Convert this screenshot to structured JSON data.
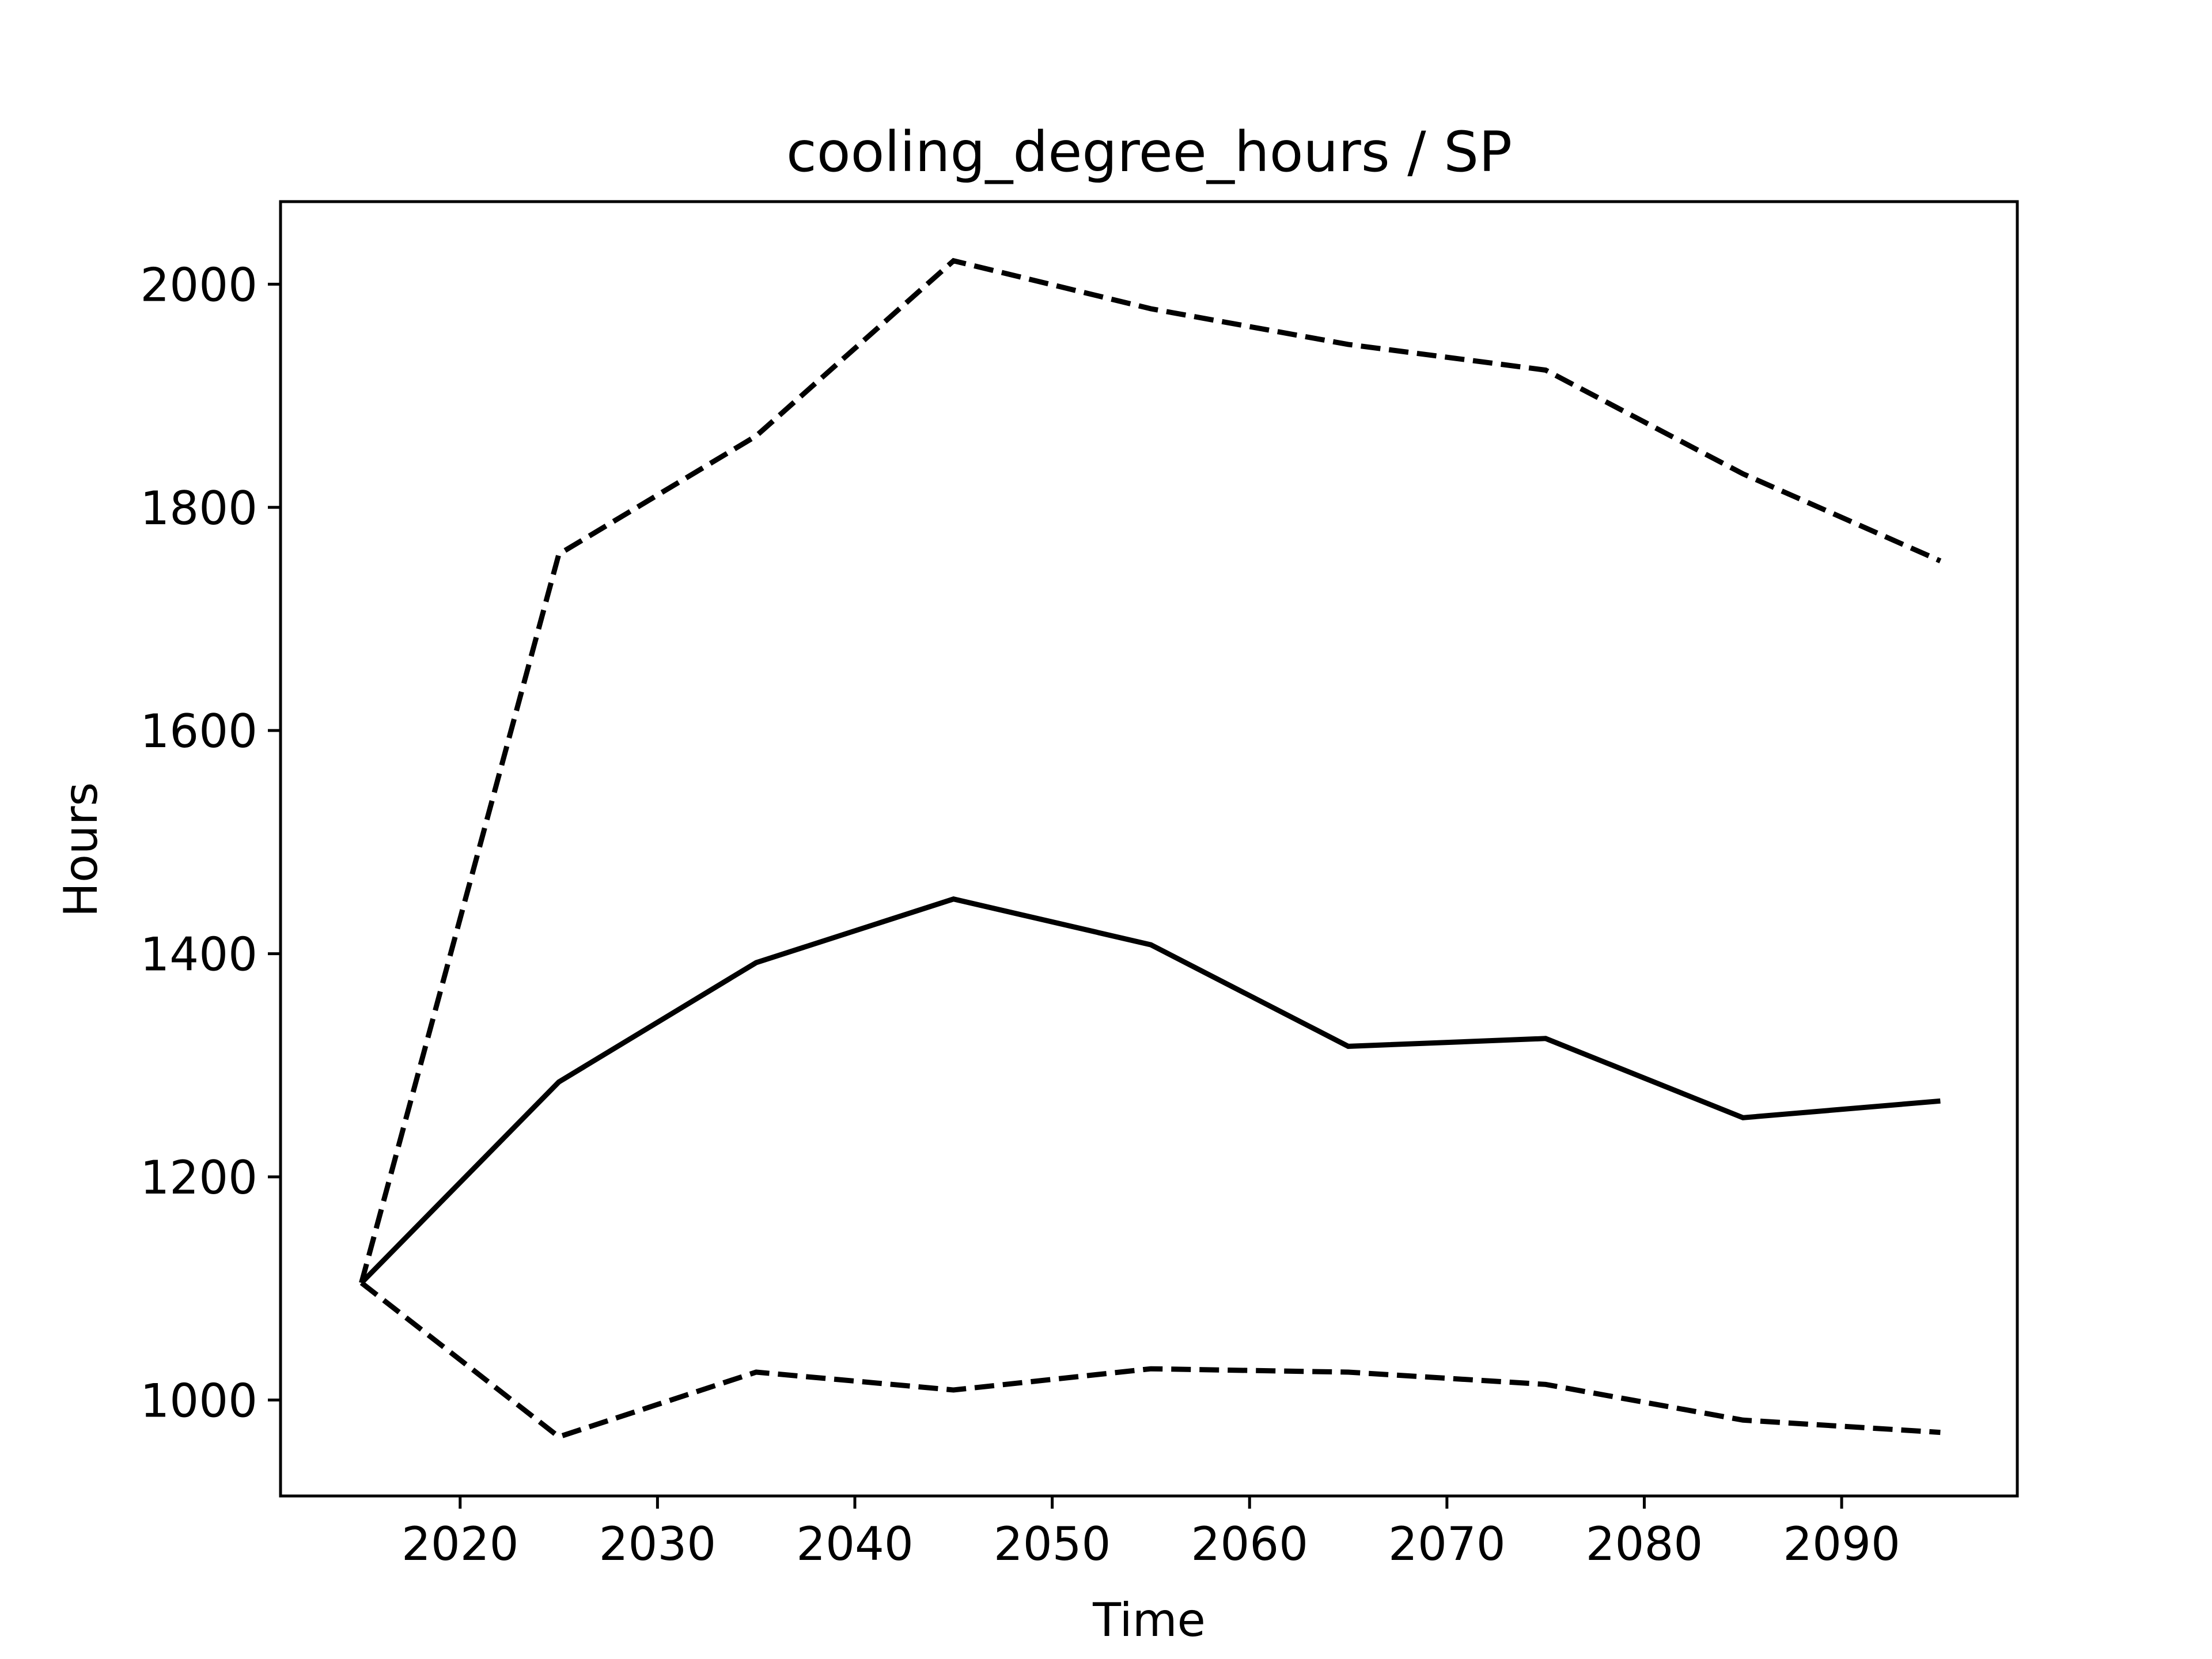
{
  "chart_data": {
    "type": "line",
    "title": "cooling_degree_hours / SP",
    "xlabel": "Time",
    "ylabel": "Hours",
    "x": [
      2015,
      2025,
      2035,
      2045,
      2055,
      2065,
      2075,
      2085,
      2095
    ],
    "xlim": [
      2010.9,
      2098.9
    ],
    "ylim": [
      914,
      2074
    ],
    "xticks": [
      2020,
      2030,
      2040,
      2050,
      2060,
      2070,
      2080,
      2090
    ],
    "yticks": [
      1000,
      1200,
      1400,
      1600,
      1800,
      2000
    ],
    "grid": false,
    "legend": "none",
    "series": [
      {
        "style": "solid",
        "color": "#000000",
        "values": [
          1105,
          1285,
          1392,
          1449,
          1408,
          1317,
          1324,
          1253,
          1268
        ]
      },
      {
        "style": "dashed",
        "color": "#000000",
        "values": [
          1105,
          1758,
          1864,
          2021,
          1978,
          1946,
          1923,
          1830,
          1752
        ]
      },
      {
        "style": "dashed",
        "color": "#000000",
        "values": [
          1105,
          967,
          1025,
          1009,
          1028,
          1025,
          1014,
          982,
          971
        ]
      }
    ]
  }
}
